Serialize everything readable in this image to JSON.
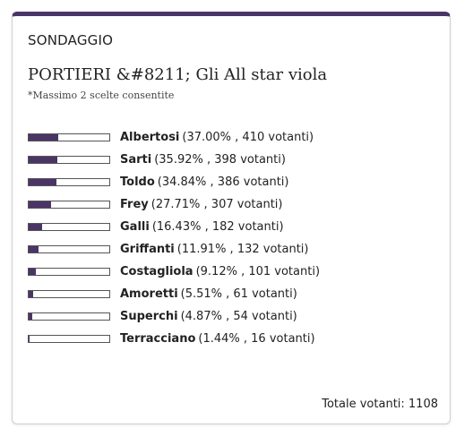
{
  "poll": {
    "header_label": "SONDAGGIO",
    "title": "PORTIERI &#8211; Gli All star viola",
    "note": "*Massimo 2 scelte consentite",
    "accent_color": "#4a3566",
    "options": [
      {
        "name": "Albertosi",
        "stats": "(37.00% , 410 votanti)",
        "percent": 37.0
      },
      {
        "name": "Sarti",
        "stats": "(35.92% , 398 votanti)",
        "percent": 35.92
      },
      {
        "name": "Toldo",
        "stats": "(34.84% , 386 votanti)",
        "percent": 34.84
      },
      {
        "name": "Frey",
        "stats": "(27.71% , 307 votanti)",
        "percent": 27.71
      },
      {
        "name": "Galli",
        "stats": "(16.43% , 182 votanti)",
        "percent": 16.43
      },
      {
        "name": "Griffanti",
        "stats": "(11.91% , 132 votanti)",
        "percent": 11.91
      },
      {
        "name": "Costagliola",
        "stats": "(9.12% , 101 votanti)",
        "percent": 9.12
      },
      {
        "name": "Amoretti",
        "stats": "(5.51% , 61 votanti)",
        "percent": 5.51
      },
      {
        "name": "Superchi",
        "stats": "(4.87% , 54 votanti)",
        "percent": 4.87
      },
      {
        "name": "Terracciano",
        "stats": "(1.44% , 16 votanti)",
        "percent": 1.44
      }
    ],
    "total_text": "Totale votanti: 1108"
  }
}
